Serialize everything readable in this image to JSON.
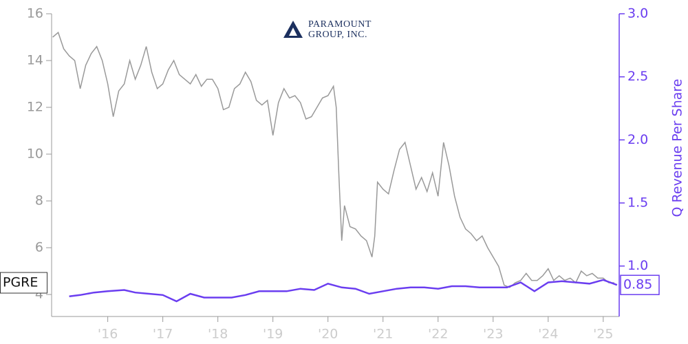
{
  "chart_data": {
    "type": "line",
    "logo": [
      "PARAMOUNT",
      "GROUP, INC."
    ],
    "y2label": "Q Revenue Per Share",
    "xlim": [
      2014.98,
      2025.29
    ],
    "xticks": [
      {
        "value": 2016,
        "label": "'16"
      },
      {
        "value": 2017,
        "label": "'17"
      },
      {
        "value": 2018,
        "label": "'18"
      },
      {
        "value": 2019,
        "label": "'19"
      },
      {
        "value": 2020,
        "label": "'20"
      },
      {
        "value": 2021,
        "label": "'21"
      },
      {
        "value": 2022,
        "label": "'22"
      },
      {
        "value": 2023,
        "label": "'23"
      },
      {
        "value": 2024,
        "label": "'24"
      },
      {
        "value": 2025,
        "label": "'25"
      }
    ],
    "ylim": [
      3.06,
      16
    ],
    "yticks": [
      4,
      6,
      8,
      10,
      12,
      14,
      16
    ],
    "y2lim": [
      0.6,
      3.0
    ],
    "y2ticks": [
      {
        "value": 1.0,
        "label": "1.0"
      },
      1.5,
      {
        "value": 2.0,
        "label": "2.0"
      },
      2.5,
      {
        "value": 3.0,
        "label": "3.0"
      }
    ],
    "series": [
      {
        "name": "PGRE",
        "color": "#999999",
        "x": [
          2015.0,
          2015.1,
          2015.2,
          2015.3,
          2015.4,
          2015.5,
          2015.6,
          2015.7,
          2015.8,
          2015.9,
          2016.0,
          2016.1,
          2016.2,
          2016.3,
          2016.4,
          2016.5,
          2016.6,
          2016.7,
          2016.8,
          2016.9,
          2017.0,
          2017.1,
          2017.2,
          2017.3,
          2017.4,
          2017.5,
          2017.6,
          2017.7,
          2017.8,
          2017.9,
          2018.0,
          2018.1,
          2018.2,
          2018.3,
          2018.4,
          2018.5,
          2018.6,
          2018.7,
          2018.8,
          2018.9,
          2019.0,
          2019.1,
          2019.2,
          2019.3,
          2019.4,
          2019.5,
          2019.6,
          2019.7,
          2019.8,
          2019.9,
          2020.0,
          2020.1,
          2020.15,
          2020.2,
          2020.25,
          2020.3,
          2020.4,
          2020.5,
          2020.6,
          2020.7,
          2020.8,
          2020.85,
          2020.9,
          2021.0,
          2021.1,
          2021.2,
          2021.3,
          2021.4,
          2021.5,
          2021.6,
          2021.7,
          2021.8,
          2021.9,
          2022.0,
          2022.1,
          2022.2,
          2022.3,
          2022.4,
          2022.5,
          2022.6,
          2022.7,
          2022.8,
          2022.9,
          2023.0,
          2023.1,
          2023.2,
          2023.3,
          2023.4,
          2023.5,
          2023.6,
          2023.7,
          2023.8,
          2023.9,
          2024.0,
          2024.1,
          2024.2,
          2024.3,
          2024.4,
          2024.5,
          2024.6,
          2024.7,
          2024.8,
          2024.9,
          2025.0,
          2025.1,
          2025.2
        ],
        "values": [
          15.0,
          15.2,
          14.5,
          14.2,
          14.0,
          12.8,
          13.8,
          14.3,
          14.6,
          14.0,
          13.0,
          11.6,
          12.7,
          13.0,
          14.0,
          13.2,
          13.8,
          14.6,
          13.5,
          12.8,
          13.0,
          13.6,
          14.0,
          13.4,
          13.2,
          13.0,
          13.4,
          12.9,
          13.2,
          13.2,
          12.8,
          11.9,
          12.0,
          12.8,
          13.0,
          13.5,
          13.1,
          12.3,
          12.1,
          12.3,
          10.8,
          12.2,
          12.8,
          12.4,
          12.5,
          12.2,
          11.5,
          11.6,
          12.0,
          12.4,
          12.5,
          12.9,
          12.0,
          9.0,
          6.3,
          7.8,
          6.9,
          6.8,
          6.5,
          6.3,
          5.6,
          6.5,
          8.8,
          8.5,
          8.3,
          9.3,
          10.2,
          10.5,
          9.5,
          8.5,
          9.0,
          8.4,
          9.2,
          8.2,
          10.5,
          9.5,
          8.2,
          7.3,
          6.8,
          6.6,
          6.3,
          6.5,
          6.0,
          5.6,
          5.2,
          4.4,
          4.3,
          4.5,
          4.6,
          4.9,
          4.6,
          4.6,
          4.8,
          5.1,
          4.6,
          4.8,
          4.6,
          4.7,
          4.5,
          5.0,
          4.8,
          4.9,
          4.7,
          4.7,
          4.5,
          4.5
        ]
      },
      {
        "color": "#6a3df0",
        "axis": "y2",
        "x": [
          2015.3,
          2015.5,
          2015.75,
          2016.0,
          2016.3,
          2016.5,
          2016.75,
          2017.0,
          2017.25,
          2017.5,
          2017.75,
          2018.0,
          2018.25,
          2018.5,
          2018.75,
          2019.0,
          2019.25,
          2019.5,
          2019.75,
          2020.0,
          2020.25,
          2020.5,
          2020.75,
          2021.0,
          2021.25,
          2021.5,
          2021.75,
          2022.0,
          2022.25,
          2022.5,
          2022.75,
          2023.0,
          2023.25,
          2023.5,
          2023.75,
          2024.0,
          2024.25,
          2024.5,
          2024.75,
          2025.0,
          2025.25
        ],
        "values": [
          0.76,
          0.77,
          0.79,
          0.8,
          0.81,
          0.79,
          0.78,
          0.77,
          0.72,
          0.78,
          0.75,
          0.75,
          0.75,
          0.77,
          0.8,
          0.8,
          0.8,
          0.82,
          0.81,
          0.86,
          0.83,
          0.82,
          0.78,
          0.8,
          0.82,
          0.83,
          0.83,
          0.82,
          0.84,
          0.84,
          0.83,
          0.83,
          0.83,
          0.87,
          0.8,
          0.87,
          0.88,
          0.87,
          0.86,
          0.89,
          0.85
        ]
      }
    ]
  }
}
